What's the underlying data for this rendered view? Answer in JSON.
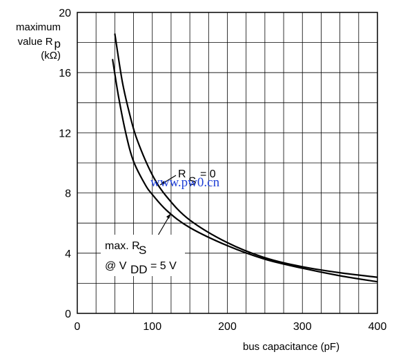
{
  "chart_data": {
    "type": "line",
    "ylabel_lines": [
      "maximum",
      "value R",
      "p",
      "(kΩ)"
    ],
    "xlabel": "bus capacitance (pF)",
    "xlim": [
      0,
      400
    ],
    "ylim": [
      0,
      20
    ],
    "xticks": [
      0,
      100,
      200,
      300,
      400
    ],
    "yticks": [
      0,
      4,
      8,
      12,
      16,
      20
    ],
    "grid": true,
    "series": [
      {
        "name_parts": [
          "R",
          "S",
          "= 0"
        ],
        "x": [
          50,
          60,
          70,
          80,
          100,
          120,
          150,
          200,
          250,
          300,
          350,
          400
        ],
        "y": [
          18.6,
          15.4,
          13.2,
          11.5,
          9.2,
          7.7,
          6.2,
          4.7,
          3.7,
          3.1,
          2.7,
          2.4
        ]
      },
      {
        "name_parts": [
          "max. R",
          "S",
          "@ V",
          "DD",
          "= 5 V"
        ],
        "x": [
          47,
          55,
          65,
          75,
          90,
          100,
          120,
          150,
          200,
          250,
          300,
          350,
          400
        ],
        "y": [
          16.9,
          14.4,
          11.9,
          10.1,
          8.6,
          7.9,
          6.8,
          5.7,
          4.5,
          3.6,
          3.0,
          2.5,
          2.1
        ]
      }
    ],
    "watermark": "www.pw0.cn"
  }
}
